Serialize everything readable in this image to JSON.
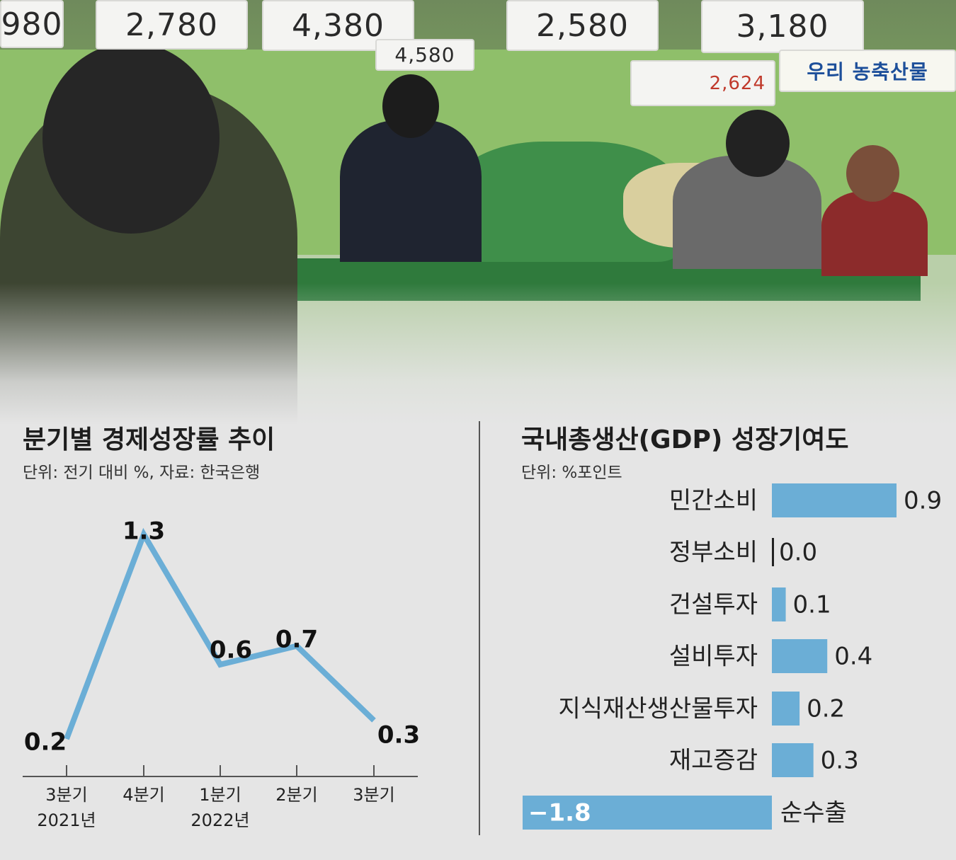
{
  "photo": {
    "price_tags": [
      "980",
      "2,780",
      "4,380",
      "4,580",
      "2,580",
      "3,180",
      "2,624"
    ],
    "sign_text": "우리 농축산물"
  },
  "left_panel": {
    "title": "분기별 경제성장률 추이",
    "subtitle": "단위: 전기 대비 %, 자료: 한국은행"
  },
  "right_panel": {
    "title": "국내총생산(GDP) 성장기여도",
    "subtitle": "단위: %포인트"
  },
  "colors": {
    "accent": "#6baed6",
    "background": "#e5e5e5",
    "text": "#222222"
  },
  "chart_data": [
    {
      "type": "line",
      "title": "분기별 경제성장률 추이",
      "categories": [
        [
          "3분기",
          "2021년"
        ],
        [
          "4분기",
          ""
        ],
        [
          "1분기",
          "2022년"
        ],
        [
          "2분기",
          ""
        ],
        [
          "3분기",
          ""
        ]
      ],
      "values": [
        0.2,
        1.3,
        0.6,
        0.7,
        0.3
      ],
      "labels": [
        "0.2",
        "1.3",
        "0.6",
        "0.7",
        "0.3"
      ],
      "ylim": [
        0,
        1.5
      ],
      "grid": false
    },
    {
      "type": "bar",
      "orientation": "horizontal",
      "title": "국내총생산(GDP) 성장기여도",
      "categories": [
        "민간소비",
        "정부소비",
        "건설투자",
        "설비투자",
        "지식재산생산물투자",
        "재고증감",
        "순수출"
      ],
      "values": [
        0.9,
        0.0,
        0.1,
        0.4,
        0.2,
        0.3,
        -1.8
      ],
      "labels": [
        "0.9",
        "0.0",
        "0.1",
        "0.4",
        "0.2",
        "0.3",
        "−1.8"
      ],
      "xlim": [
        -1.8,
        0.9
      ],
      "grid": false
    }
  ]
}
